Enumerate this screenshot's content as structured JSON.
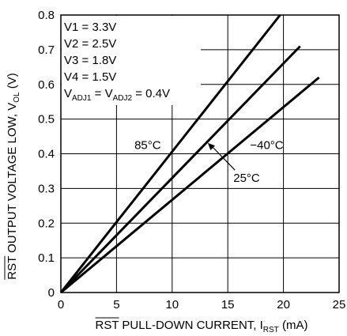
{
  "chart_data": {
    "type": "line",
    "xlabel": {
      "pre": "RST PULL-DOWN CURRENT, I",
      "sub": "RST",
      "post": " (mA)",
      "overline_word": "RST"
    },
    "ylabel": {
      "pre": "RST OUTPUT VOLTAGE LOW, V",
      "sub": "OL",
      "post": " (V)",
      "overline_word": "RST"
    },
    "xlim": [
      0,
      25
    ],
    "ylim": [
      0,
      0.8
    ],
    "xticks": [
      "0",
      "5",
      "10",
      "15",
      "20",
      "25"
    ],
    "yticks": [
      "0",
      "0.1",
      "0.2",
      "0.3",
      "0.4",
      "0.5",
      "0.6",
      "0.7",
      "0.8"
    ],
    "grid": true,
    "conditions": [
      "V1 = 3.3V",
      "V2 = 2.5V",
      "V3 = 1.8V",
      "V4 = 1.5V"
    ],
    "condition_adj": {
      "a": "V",
      "a_sub": "ADJ1",
      "b": " = V",
      "b_sub": "ADJ2",
      "c": " = 0.4V"
    },
    "series": [
      {
        "name": "85°C",
        "x": [
          0,
          19.7
        ],
        "y": [
          0,
          0.8
        ]
      },
      {
        "name": "25°C",
        "x": [
          0,
          21.5
        ],
        "y": [
          0,
          0.71
        ]
      },
      {
        "name": "−40°C",
        "x": [
          0,
          23.2
        ],
        "y": [
          0,
          0.62
        ]
      }
    ],
    "annotations": [
      {
        "text": "85°C",
        "x": 7.8,
        "y": 0.425
      },
      {
        "text": "25°C",
        "x": 15.5,
        "y": 0.33
      },
      {
        "text": "−40°C",
        "x": 17.0,
        "y": 0.425
      }
    ]
  }
}
